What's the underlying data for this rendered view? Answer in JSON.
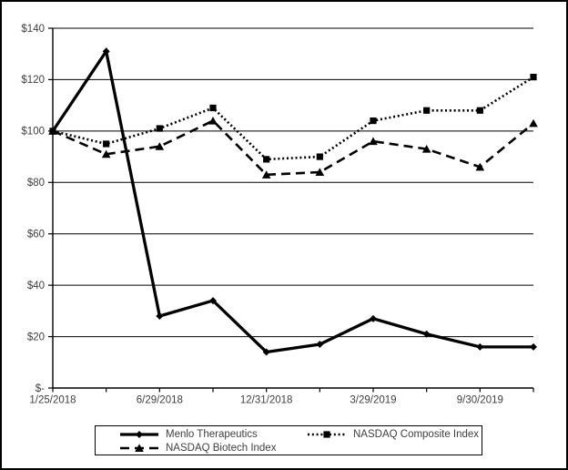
{
  "colors": {
    "series_line": "#000000",
    "axis_text": "#404040",
    "background": "#ffffff",
    "frame_border": "#000000"
  },
  "chart_data": {
    "type": "line",
    "title": "",
    "grid": true,
    "legend_position": "bottom",
    "ylim": [
      0,
      140
    ],
    "y_step": 20,
    "y_tick_labels": [
      "$-",
      "$20",
      "$40",
      "$60",
      "$80",
      "$100",
      "$120",
      "$140"
    ],
    "x_count": 10,
    "x_tick_labels": [
      {
        "index": 0,
        "label": "1/25/2018"
      },
      {
        "index": 2,
        "label": "6/29/2018"
      },
      {
        "index": 4,
        "label": "12/31/2018"
      },
      {
        "index": 6,
        "label": "3/29/2019"
      },
      {
        "index": 8,
        "label": "9/30/2019"
      }
    ],
    "series": [
      {
        "name": "Menlo Therapeutics",
        "line_style": "solid",
        "marker": "diamond",
        "color": "#000000",
        "values": [
          100,
          131,
          28,
          34,
          14,
          17,
          27,
          21,
          16,
          16
        ]
      },
      {
        "name": "NASDAQ Composite Index",
        "line_style": "dotted",
        "marker": "square",
        "color": "#000000",
        "values": [
          100,
          95,
          101,
          109,
          89,
          90,
          104,
          108,
          108,
          121
        ]
      },
      {
        "name": "NASDAQ Biotech Index",
        "line_style": "dashed",
        "marker": "triangle",
        "color": "#000000",
        "values": [
          100,
          91,
          94,
          104,
          83,
          84,
          96,
          93,
          86,
          103
        ]
      }
    ]
  }
}
